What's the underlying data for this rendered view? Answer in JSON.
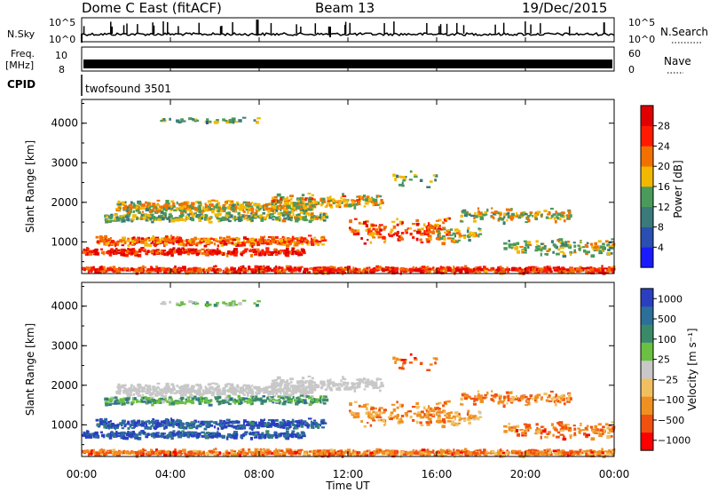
{
  "header": {
    "title": "Dome C East (fitACF)",
    "beam": "Beam 13",
    "date": "19/Dec/2015"
  },
  "strips": {
    "nsky": {
      "label": "N.Sky",
      "tick_hi": "10^5",
      "tick_lo": "10^0",
      "right_label": "N.Search",
      "right_tick_hi": "10^5",
      "right_tick_lo": "10^0"
    },
    "freq": {
      "label_line1": "Freq.",
      "label_line2": "[MHz]",
      "tick_hi": "10",
      "tick_lo": "8",
      "right_label": "Nave",
      "right_tick_hi": "60",
      "right_tick_lo": "0"
    },
    "cpid": {
      "label": "CPID",
      "value": "twofsound 3501"
    }
  },
  "chart_data": [
    {
      "type": "heatmap",
      "name": "power",
      "ylabel": "Slant Range [km]",
      "ylim": [
        200,
        4600
      ],
      "yticks": [
        1000,
        2000,
        3000,
        4000
      ],
      "xlim": [
        0,
        24
      ],
      "colorbar": {
        "label": "Power [dB]",
        "ticks": [
          4,
          8,
          12,
          16,
          20,
          24,
          28
        ],
        "colors": [
          "#1a1aff",
          "#2a4fb0",
          "#3a7a7a",
          "#4a9a5a",
          "#f2b800",
          "#f27000",
          "#ff1a00",
          "#e00000"
        ]
      }
    },
    {
      "type": "heatmap",
      "name": "velocity",
      "ylabel": "Slant Range [km]",
      "ylim": [
        200,
        4600
      ],
      "yticks": [
        1000,
        2000,
        3000,
        4000
      ],
      "xlim": [
        0,
        24
      ],
      "colorbar": {
        "label": "Velocity [m s⁻¹]",
        "ticks": [
          "1000",
          "500",
          "100",
          "25",
          "−25",
          "−100",
          "−500",
          "−1000"
        ],
        "colors": [
          "#2a3fc0",
          "#2c6f9a",
          "#3a8a6a",
          "#6ac040",
          "#c8c8c8",
          "#f0c060",
          "#f09020",
          "#f05010",
          "#ff0000"
        ]
      }
    }
  ],
  "xaxis": {
    "label": "Time UT",
    "ticks": [
      "00:00",
      "04:00",
      "08:00",
      "12:00",
      "16:00",
      "20:00",
      "00:00"
    ]
  }
}
